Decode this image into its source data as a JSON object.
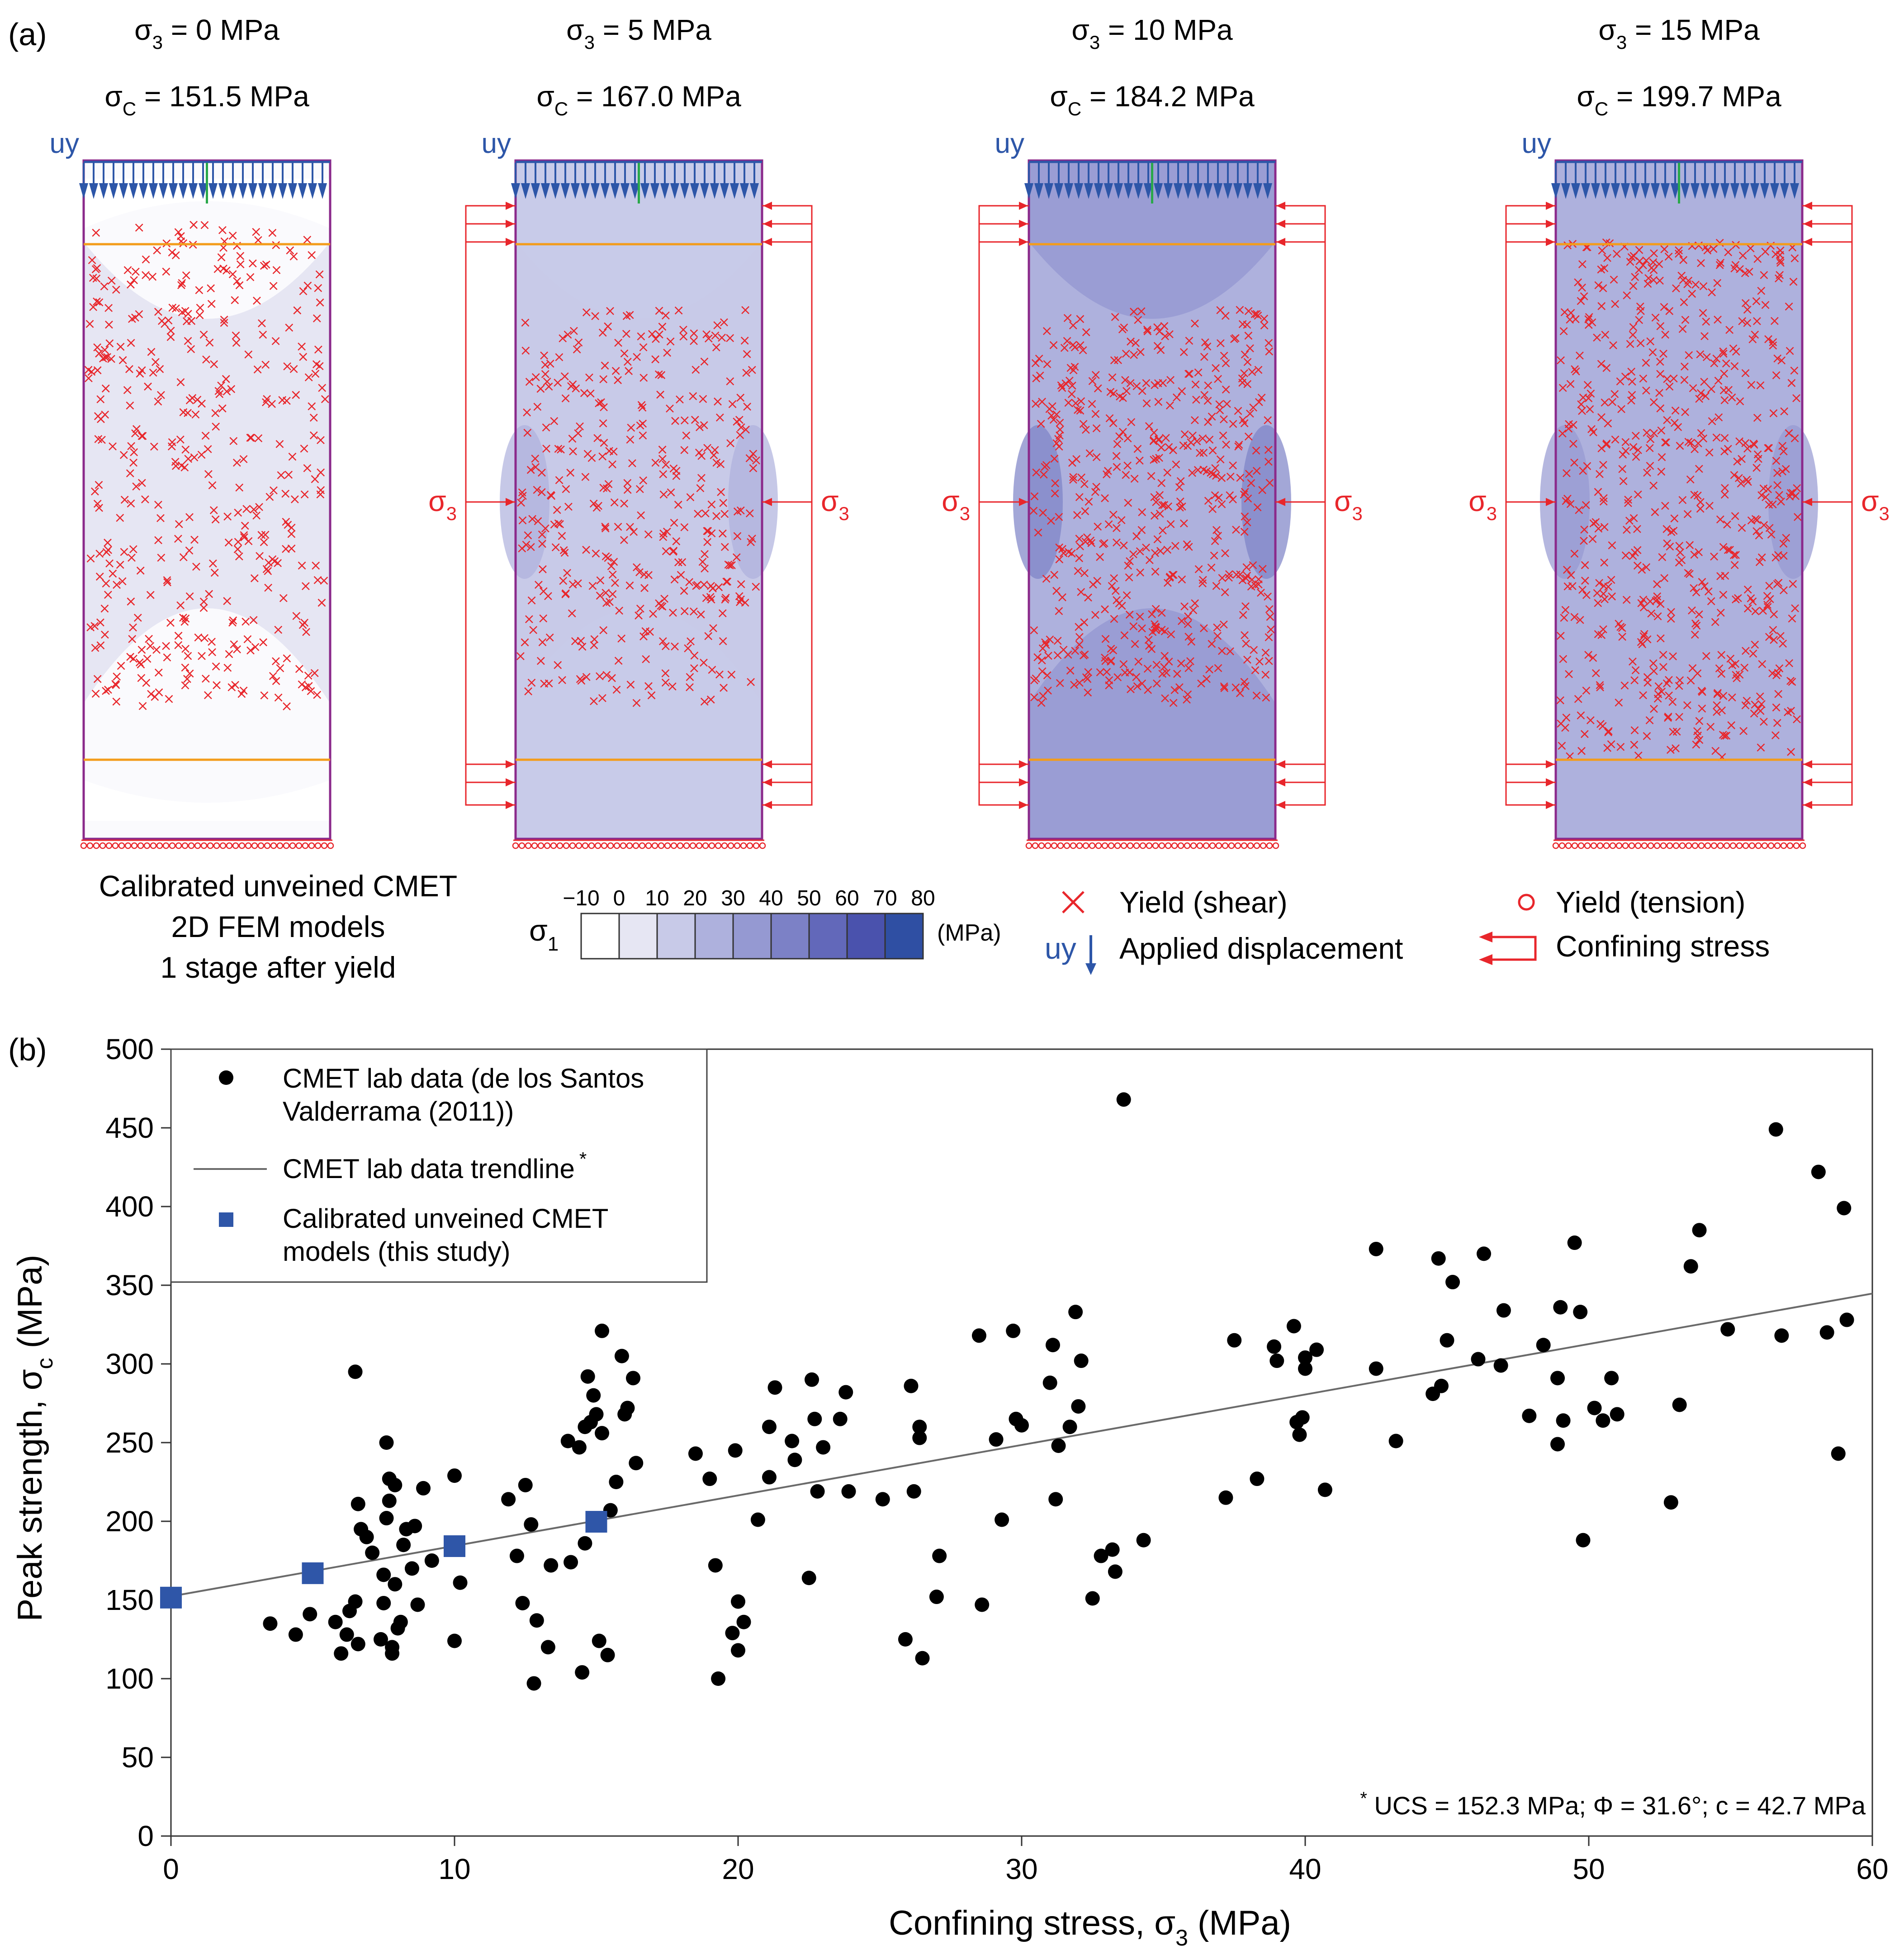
{
  "panel_a": {
    "label": "(a)",
    "models": [
      {
        "sigma3_label": "σ3 = 0 MPa",
        "sigma3_pre": "σ",
        "sigma3_sub": "3",
        "sigma3_post": " = 0 MPa",
        "sigmac_pre": "σ",
        "sigmac_sub": "C",
        "sigmac_post": " = 151.5 MPa",
        "confined": false
      },
      {
        "sigma3_label": "σ3 = 5 MPa",
        "sigma3_pre": "σ",
        "sigma3_sub": "3",
        "sigma3_post": " = 5 MPa",
        "sigmac_pre": "σ",
        "sigmac_sub": "C",
        "sigmac_post": " = 167.0 MPa",
        "confined": true
      },
      {
        "sigma3_label": "σ3 = 10 MPa",
        "sigma3_pre": "σ",
        "sigma3_sub": "3",
        "sigma3_post": " = 10 MPa",
        "sigmac_pre": "σ",
        "sigmac_sub": "C",
        "sigmac_post": " = 184.2 MPa",
        "confined": true
      },
      {
        "sigma3_label": "σ3 = 15 MPa",
        "sigma3_pre": "σ",
        "sigma3_sub": "3",
        "sigma3_post": " = 15 MPa",
        "sigmac_pre": "σ",
        "sigmac_sub": "C",
        "sigmac_post": " = 199.7 MPa",
        "confined": true
      }
    ],
    "uy_label": "uy",
    "confining_label_pre": "σ",
    "confining_label_sub": "3",
    "caption_lines": [
      "Calibrated unveined CMET",
      "2D FEM models",
      "1 stage after yield"
    ],
    "colorbar": {
      "symbol_pre": "σ",
      "symbol_sub": "1",
      "ticks": [
        "−10",
        "0",
        "10",
        "20",
        "30",
        "40",
        "50",
        "60",
        "70",
        "80"
      ],
      "unit": "(MPa)",
      "colors": [
        "#ffffff",
        "#e6e6f3",
        "#c8cae8",
        "#aeb1dd",
        "#9599d2",
        "#7c81c6",
        "#6268ba",
        "#4a52ad",
        "#2f4fa3"
      ]
    },
    "legend": {
      "yield_shear": "Yield (shear)",
      "yield_tension": "Yield (tension)",
      "uy": "uy",
      "applied_displacement": "Applied displacement",
      "confining_stress": "Confining stress"
    },
    "colors": {
      "displacement": "#2d56a8",
      "yield": "#e8262b",
      "boundary": "#8b2a8b",
      "platen": "#f39c1b",
      "green": "#2aa84a"
    }
  },
  "panel_b": {
    "label": "(b)"
  },
  "chart_data": {
    "type": "scatter",
    "title": "",
    "xlabel": "Confining stress, σ3 (MPa)",
    "xlabel_pre": "Confining stress, σ",
    "xlabel_sub": "3",
    "xlabel_post": " (MPa)",
    "ylabel": "Peak strength, σc (MPa)",
    "ylabel_pre": "Peak strength, σ",
    "ylabel_sub": "c",
    "ylabel_post": " (MPa)",
    "xlim": [
      0,
      60
    ],
    "ylim": [
      0,
      500
    ],
    "xticks": [
      0,
      10,
      20,
      30,
      40,
      50,
      60
    ],
    "yticks": [
      0,
      50,
      100,
      150,
      200,
      250,
      300,
      350,
      400,
      450,
      500
    ],
    "grid": false,
    "legend_position": "top-left",
    "legend": [
      {
        "lines": [
          "CMET lab data (de los Santos",
          "Valderrama (2011))"
        ]
      },
      {
        "lines": [
          "CMET lab data trendline"
        ],
        "sup": "*"
      },
      {
        "lines": [
          "Calibrated unveined CMET",
          "models (this study)"
        ]
      }
    ],
    "series": [
      {
        "name": "CMET lab data (de los Santos Valderrama (2011))",
        "marker": "circle",
        "color": "#000000",
        "points": [
          [
            3.5,
            135
          ],
          [
            4.4,
            128
          ],
          [
            4.9,
            141
          ],
          [
            5.8,
            136
          ],
          [
            6.0,
            116
          ],
          [
            6.2,
            128
          ],
          [
            6.3,
            143
          ],
          [
            6.5,
            295
          ],
          [
            6.5,
            149
          ],
          [
            6.6,
            122
          ],
          [
            6.6,
            211
          ],
          [
            6.7,
            195
          ],
          [
            6.9,
            190
          ],
          [
            7.1,
            180
          ],
          [
            7.4,
            125
          ],
          [
            7.5,
            166
          ],
          [
            7.5,
            148
          ],
          [
            7.6,
            202
          ],
          [
            7.6,
            250
          ],
          [
            7.7,
            227
          ],
          [
            7.7,
            213
          ],
          [
            7.8,
            116
          ],
          [
            7.8,
            120
          ],
          [
            7.9,
            160
          ],
          [
            7.9,
            223
          ],
          [
            8.0,
            132
          ],
          [
            8.1,
            136
          ],
          [
            8.2,
            185
          ],
          [
            8.3,
            195
          ],
          [
            8.5,
            170
          ],
          [
            8.6,
            197
          ],
          [
            8.7,
            147
          ],
          [
            8.9,
            221
          ],
          [
            9.2,
            175
          ],
          [
            10.0,
            229
          ],
          [
            10.0,
            124
          ],
          [
            10.2,
            161
          ],
          [
            11.9,
            214
          ],
          [
            12.2,
            178
          ],
          [
            12.4,
            148
          ],
          [
            12.5,
            223
          ],
          [
            12.7,
            198
          ],
          [
            12.8,
            97
          ],
          [
            12.9,
            137
          ],
          [
            13.3,
            120
          ],
          [
            13.4,
            172
          ],
          [
            14.0,
            251
          ],
          [
            14.1,
            174
          ],
          [
            14.4,
            247
          ],
          [
            14.5,
            104
          ],
          [
            14.6,
            186
          ],
          [
            14.6,
            260
          ],
          [
            14.7,
            292
          ],
          [
            14.8,
            263
          ],
          [
            14.9,
            280
          ],
          [
            15.0,
            268
          ],
          [
            15.1,
            124
          ],
          [
            15.2,
            256
          ],
          [
            15.2,
            321
          ],
          [
            15.4,
            115
          ],
          [
            15.5,
            207
          ],
          [
            15.7,
            225
          ],
          [
            15.9,
            305
          ],
          [
            16.0,
            268
          ],
          [
            16.1,
            272
          ],
          [
            16.3,
            291
          ],
          [
            16.4,
            237
          ],
          [
            18.5,
            243
          ],
          [
            19.0,
            227
          ],
          [
            19.2,
            172
          ],
          [
            19.3,
            100
          ],
          [
            19.8,
            129
          ],
          [
            19.9,
            245
          ],
          [
            20.0,
            118
          ],
          [
            20.0,
            149
          ],
          [
            20.2,
            136
          ],
          [
            20.7,
            201
          ],
          [
            21.1,
            260
          ],
          [
            21.1,
            228
          ],
          [
            21.3,
            285
          ],
          [
            21.9,
            251
          ],
          [
            22.0,
            239
          ],
          [
            22.5,
            164
          ],
          [
            22.6,
            290
          ],
          [
            22.7,
            265
          ],
          [
            22.8,
            219
          ],
          [
            23.0,
            247
          ],
          [
            23.6,
            265
          ],
          [
            23.8,
            282
          ],
          [
            23.9,
            219
          ],
          [
            25.1,
            214
          ],
          [
            25.9,
            125
          ],
          [
            26.1,
            286
          ],
          [
            26.2,
            219
          ],
          [
            26.4,
            253
          ],
          [
            26.4,
            260
          ],
          [
            26.5,
            113
          ],
          [
            27.0,
            152
          ],
          [
            27.1,
            178
          ],
          [
            28.5,
            318
          ],
          [
            28.6,
            147
          ],
          [
            29.1,
            252
          ],
          [
            29.3,
            201
          ],
          [
            29.7,
            321
          ],
          [
            29.8,
            265
          ],
          [
            30.0,
            261
          ],
          [
            31.0,
            288
          ],
          [
            31.1,
            312
          ],
          [
            31.2,
            214
          ],
          [
            31.3,
            248
          ],
          [
            31.7,
            260
          ],
          [
            31.9,
            333
          ],
          [
            32.0,
            273
          ],
          [
            32.1,
            302
          ],
          [
            32.5,
            151
          ],
          [
            32.8,
            178
          ],
          [
            33.2,
            182
          ],
          [
            33.3,
            168
          ],
          [
            33.6,
            468
          ],
          [
            34.3,
            188
          ],
          [
            37.2,
            215
          ],
          [
            37.5,
            315
          ],
          [
            38.3,
            227
          ],
          [
            38.9,
            311
          ],
          [
            39.0,
            302
          ],
          [
            39.6,
            324
          ],
          [
            39.7,
            263
          ],
          [
            39.8,
            255
          ],
          [
            39.9,
            266
          ],
          [
            40.0,
            297
          ],
          [
            40.0,
            304
          ],
          [
            40.4,
            309
          ],
          [
            40.7,
            220
          ],
          [
            42.5,
            373
          ],
          [
            42.5,
            297
          ],
          [
            43.2,
            251
          ],
          [
            44.5,
            281
          ],
          [
            44.7,
            367
          ],
          [
            44.8,
            286
          ],
          [
            45.0,
            315
          ],
          [
            45.2,
            352
          ],
          [
            46.1,
            303
          ],
          [
            46.3,
            370
          ],
          [
            46.9,
            299
          ],
          [
            47.0,
            334
          ],
          [
            47.9,
            267
          ],
          [
            48.4,
            312
          ],
          [
            48.9,
            291
          ],
          [
            48.9,
            249
          ],
          [
            49.0,
            336
          ],
          [
            49.1,
            264
          ],
          [
            49.5,
            377
          ],
          [
            49.7,
            333
          ],
          [
            49.8,
            188
          ],
          [
            50.2,
            272
          ],
          [
            50.5,
            264
          ],
          [
            50.8,
            291
          ],
          [
            51.0,
            268
          ],
          [
            52.9,
            212
          ],
          [
            53.2,
            274
          ],
          [
            53.6,
            362
          ],
          [
            53.9,
            385
          ],
          [
            54.9,
            322
          ],
          [
            56.6,
            449
          ],
          [
            56.8,
            318
          ],
          [
            58.1,
            422
          ],
          [
            58.4,
            320
          ],
          [
            58.8,
            243
          ],
          [
            59.0,
            399
          ],
          [
            59.1,
            328
          ]
        ]
      },
      {
        "name": "CMET lab data trendline",
        "type": "line",
        "color": "#666666",
        "x": [
          0,
          60
        ],
        "y": [
          152.3,
          344.7
        ]
      },
      {
        "name": "Calibrated unveined CMET models (this study)",
        "marker": "square",
        "color": "#2f56a8",
        "points": [
          [
            0,
            151.5
          ],
          [
            5,
            167.0
          ],
          [
            10,
            184.2
          ],
          [
            15,
            199.7
          ]
        ]
      }
    ],
    "annotation": {
      "sup": "*",
      "text": " UCS = 152.3 MPa; Φ = 31.6°; c = 42.7 MPa"
    }
  }
}
